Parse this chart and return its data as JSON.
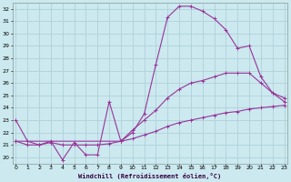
{
  "xlabel": "Windchill (Refroidissement éolien,°C)",
  "bg_color": "#cbe9ef",
  "line_color": "#993399",
  "grid_color": "#aaccd4",
  "x_ticks": [
    0,
    1,
    2,
    3,
    4,
    5,
    6,
    7,
    8,
    9,
    10,
    11,
    12,
    13,
    14,
    15,
    16,
    17,
    18,
    19,
    20,
    21,
    22,
    23
  ],
  "y_ticks": [
    20,
    21,
    22,
    23,
    24,
    25,
    26,
    27,
    28,
    29,
    30,
    31,
    32
  ],
  "xlim": [
    -0.3,
    23.3
  ],
  "ylim": [
    19.5,
    32.5
  ],
  "line1_x": [
    0,
    1,
    2,
    3,
    4,
    5,
    6,
    7,
    8,
    9,
    10,
    11,
    12,
    13,
    14,
    15,
    16,
    17,
    18,
    19,
    20,
    21,
    22,
    23
  ],
  "line1_y": [
    23.0,
    21.3,
    21.0,
    21.3,
    19.8,
    21.2,
    20.2,
    20.2,
    24.5,
    21.3,
    22.0,
    23.5,
    27.5,
    31.3,
    32.2,
    32.2,
    31.8,
    31.2,
    30.3,
    28.8,
    29.0,
    26.5,
    25.2,
    24.8
  ],
  "line2_x": [
    0,
    9,
    10,
    11,
    12,
    13,
    14,
    15,
    16,
    17,
    18,
    19,
    20,
    21,
    22,
    23
  ],
  "line2_y": [
    21.3,
    21.3,
    22.2,
    23.0,
    23.8,
    24.8,
    25.5,
    26.0,
    26.2,
    26.5,
    26.8,
    26.8,
    26.8,
    26.0,
    25.2,
    24.5
  ],
  "line3_x": [
    0,
    1,
    2,
    3,
    4,
    5,
    6,
    7,
    8,
    9,
    10,
    11,
    12,
    13,
    14,
    15,
    16,
    17,
    18,
    19,
    20,
    21,
    22,
    23
  ],
  "line3_y": [
    21.3,
    21.0,
    21.0,
    21.2,
    21.0,
    21.0,
    21.0,
    21.0,
    21.1,
    21.3,
    21.5,
    21.8,
    22.1,
    22.5,
    22.8,
    23.0,
    23.2,
    23.4,
    23.6,
    23.7,
    23.9,
    24.0,
    24.1,
    24.2
  ]
}
